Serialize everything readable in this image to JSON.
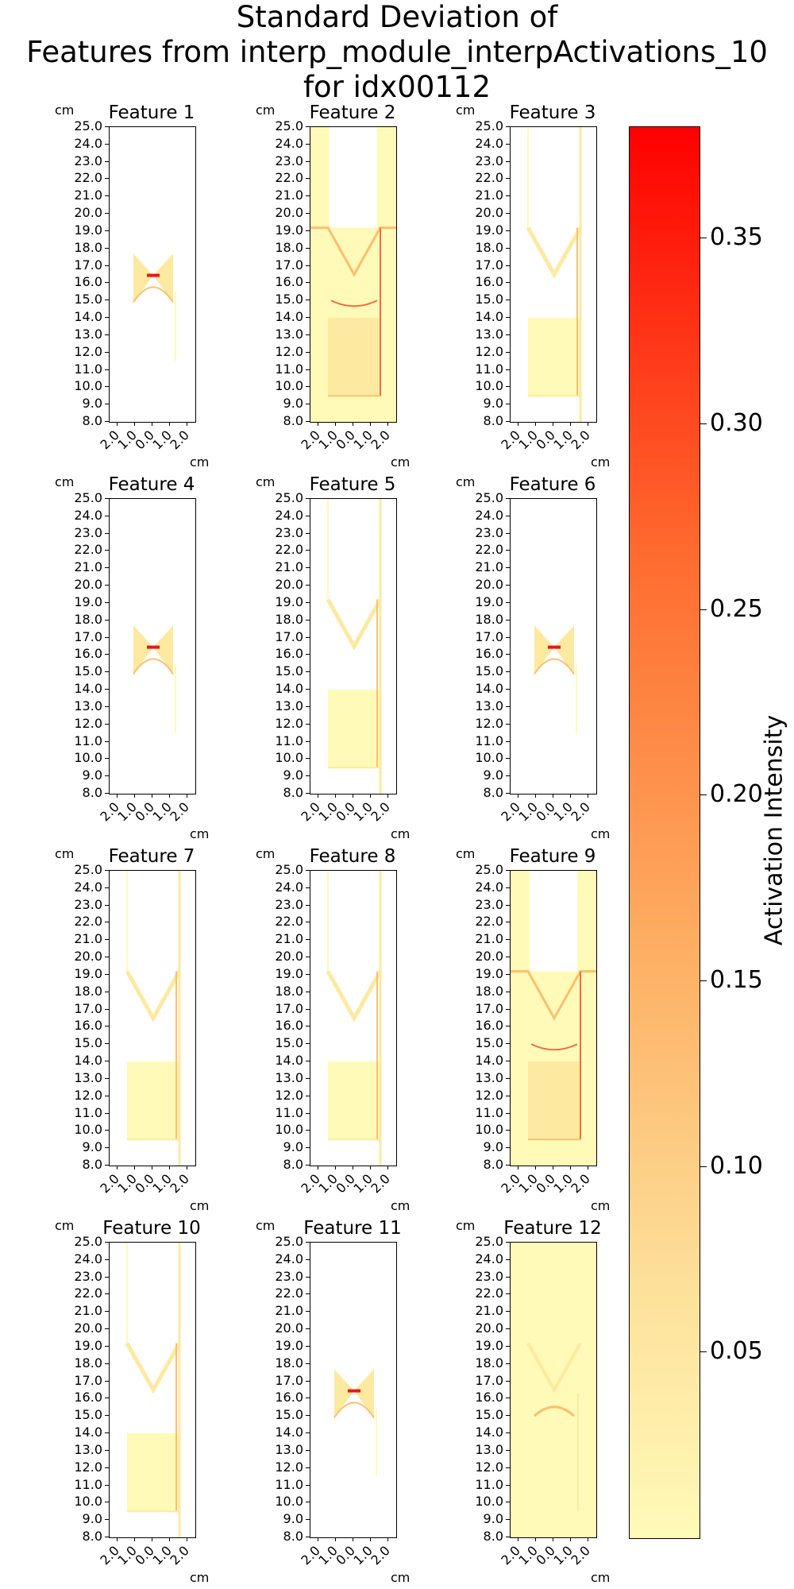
{
  "chart_data": {
    "type": "heatmap",
    "title_lines": [
      "Standard Deviation of",
      "Features from interp_module_interpActivations_10",
      "for idx00112"
    ],
    "panels": [
      {
        "title": "Feature 1",
        "pattern": "butterfly"
      },
      {
        "title": "Feature 2",
        "pattern": "full-wide"
      },
      {
        "title": "Feature 3",
        "pattern": "outline"
      },
      {
        "title": "Feature 4",
        "pattern": "butterfly"
      },
      {
        "title": "Feature 5",
        "pattern": "outline"
      },
      {
        "title": "Feature 6",
        "pattern": "butterfly"
      },
      {
        "title": "Feature 7",
        "pattern": "outline"
      },
      {
        "title": "Feature 8",
        "pattern": "outline"
      },
      {
        "title": "Feature 9",
        "pattern": "full-wide"
      },
      {
        "title": "Feature 10",
        "pattern": "outline"
      },
      {
        "title": "Feature 11",
        "pattern": "butterfly"
      },
      {
        "title": "Feature 12",
        "pattern": "full-fill"
      }
    ],
    "y_unit": "cm",
    "x_unit": "cm",
    "ylim": [
      8.0,
      25.0
    ],
    "yticks": [
      "25.0",
      "24.0",
      "23.0",
      "22.0",
      "21.0",
      "20.0",
      "19.0",
      "18.0",
      "17.0",
      "16.0",
      "15.0",
      "14.0",
      "13.0",
      "12.0",
      "11.0",
      "10.0",
      "9.0",
      "8.0"
    ],
    "xticks": [
      "2.0",
      "1.0",
      "0.0",
      "1.0",
      "2.0"
    ],
    "colorbar": {
      "label": "Activation Intensity",
      "range": [
        0.0,
        0.38
      ],
      "ticks": [
        "0.35",
        "0.30",
        "0.25",
        "0.20",
        "0.15",
        "0.10",
        "0.05"
      ],
      "tick_values": [
        0.35,
        0.3,
        0.25,
        0.2,
        0.15,
        0.1,
        0.05
      ],
      "colormap": "YlOrRd",
      "colors": {
        "low": "#fffab8",
        "mid": "#fdae62",
        "high": "#ff0000"
      }
    }
  }
}
